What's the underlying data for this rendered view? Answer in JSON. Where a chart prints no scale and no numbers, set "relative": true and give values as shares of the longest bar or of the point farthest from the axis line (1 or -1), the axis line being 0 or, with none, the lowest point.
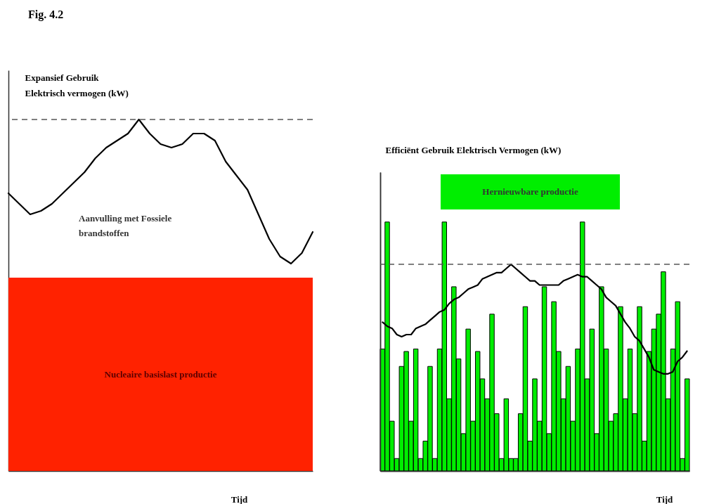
{
  "chart_data": [
    {
      "type": "line",
      "title": "Fig. 4.2",
      "ylabel": "Expansief Gebruik\nElektrisch vermogen (kW)",
      "xlabel": "Tijd",
      "relative": true,
      "categories": [
        null,
        null,
        null,
        null,
        null,
        null,
        null,
        null,
        null,
        null,
        null,
        null,
        null,
        null,
        null,
        null,
        null,
        null,
        null,
        null,
        null,
        null,
        null,
        null,
        null,
        null,
        null,
        null,
        null
      ],
      "series": [
        {
          "name": "Nucleaire basislast productie",
          "type": "area",
          "color": "#ff2200",
          "values": [
            0.55,
            0.55,
            0.55,
            0.55,
            0.55,
            0.55,
            0.55,
            0.55,
            0.55,
            0.55,
            0.55,
            0.55,
            0.55,
            0.55,
            0.55,
            0.55,
            0.55,
            0.55,
            0.55,
            0.55,
            0.55,
            0.55,
            0.55,
            0.55,
            0.55,
            0.55,
            0.55,
            0.55,
            0.55
          ]
        },
        {
          "color": "#000000",
          "values": [
            0.79,
            0.76,
            0.73,
            0.74,
            0.76,
            0.79,
            0.82,
            0.85,
            0.89,
            0.92,
            0.94,
            0.96,
            1,
            0.96,
            0.93,
            0.92,
            0.93,
            0.96,
            0.96,
            0.94,
            0.88,
            0.84,
            0.8,
            0.73,
            0.66,
            0.61,
            0.59,
            0.62,
            0.68
          ]
        }
      ],
      "ref_lines": [
        {
          "axis": "y",
          "value": 1,
          "color": "#555555",
          "line_style": "dashed"
        }
      ],
      "annotations": [
        "Aanvulling met Fossiele\nbrandstoffen"
      ]
    },
    {
      "type": "bar",
      "ylabel": "Efficiënt Gebruik Elektrisch Vermogen (kW)",
      "xlabel": "Tijd",
      "relative": true,
      "categories": [
        null,
        null,
        null,
        null,
        null,
        null,
        null,
        null,
        null,
        null,
        null,
        null,
        null,
        null,
        null,
        null,
        null,
        null,
        null,
        null,
        null,
        null,
        null,
        null,
        null,
        null,
        null,
        null,
        null,
        null,
        null,
        null,
        null,
        null,
        null,
        null,
        null,
        null,
        null,
        null,
        null,
        null,
        null,
        null,
        null,
        null,
        null,
        null,
        null,
        null,
        null,
        null,
        null,
        null,
        null,
        null,
        null,
        null,
        null,
        null,
        null,
        null,
        null,
        null,
        null
      ],
      "series": [
        {
          "name": "Hernieuwbare productie",
          "color": "#00ee00",
          "values": [
            0.49,
            1,
            0.2,
            0.05,
            0.42,
            0.48,
            0.2,
            0.49,
            0.05,
            0.12,
            0.42,
            0.05,
            0.49,
            1,
            0.29,
            0.74,
            0.45,
            0.15,
            0.57,
            0.2,
            0.48,
            0.37,
            0.29,
            0.63,
            0.23,
            0.05,
            0.29,
            0.05,
            0.05,
            0.23,
            0.66,
            0.12,
            0.37,
            0.2,
            0.74,
            0.15,
            0.68,
            0.48,
            0.29,
            0.42,
            0.2,
            0.49,
            1,
            0.37,
            0.57,
            0.15,
            0.74,
            0.49,
            0.2,
            0.23,
            0.66,
            0.29,
            0.49,
            0.23,
            0.66,
            0.12,
            0.48,
            0.57,
            0.63,
            0.8,
            0.29,
            0.49,
            0.68,
            0.05,
            0.37
          ]
        }
      ]
    },
    {
      "type": "line",
      "relative": true,
      "categories": [
        null,
        null,
        null,
        null,
        null,
        null,
        null,
        null,
        null,
        null,
        null,
        null,
        null,
        null,
        null,
        null,
        null,
        null,
        null,
        null,
        null,
        null,
        null,
        null,
        null,
        null,
        null,
        null,
        null,
        null,
        null,
        null,
        null,
        null,
        null,
        null,
        null,
        null,
        null,
        null,
        null,
        null,
        null,
        null,
        null,
        null,
        null,
        null,
        null,
        null,
        null,
        null,
        null,
        null,
        null,
        null,
        null,
        null,
        null,
        null,
        null,
        null,
        null,
        null,
        null
      ],
      "series": [
        {
          "color": "#000000",
          "values": [
            0.72,
            0.7,
            0.69,
            0.66,
            0.65,
            0.66,
            0.66,
            0.69,
            0.7,
            0.71,
            0.73,
            0.75,
            0.77,
            0.78,
            0.81,
            0.83,
            0.84,
            0.86,
            0.88,
            0.89,
            0.9,
            0.93,
            0.94,
            0.95,
            0.96,
            0.96,
            0.98,
            1,
            0.98,
            0.96,
            0.94,
            0.92,
            0.92,
            0.9,
            0.9,
            0.9,
            0.9,
            0.9,
            0.92,
            0.93,
            0.94,
            0.95,
            0.94,
            0.94,
            0.92,
            0.9,
            0.88,
            0.84,
            0.82,
            0.8,
            0.76,
            0.72,
            0.69,
            0.65,
            0.63,
            0.59,
            0.55,
            0.49,
            0.48,
            0.47,
            0.47,
            0.48,
            0.53,
            0.55,
            0.58
          ]
        }
      ],
      "ref_lines": [
        {
          "axis": "y",
          "value": 1,
          "color": "#555555",
          "line_style": "dashed"
        }
      ]
    }
  ]
}
